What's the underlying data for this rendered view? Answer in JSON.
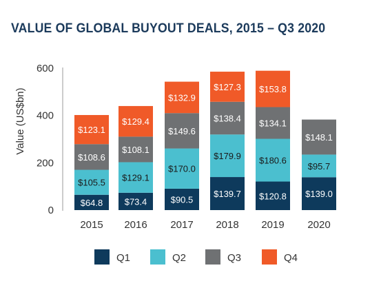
{
  "chart_data": {
    "type": "bar",
    "stacked": true,
    "title": "VALUE OF GLOBAL BUYOUT DEALS, 2015 – Q3 2020",
    "xlabel": "",
    "ylabel": "Value (US$bn)",
    "ylim": [
      0,
      600
    ],
    "yticks": [
      0,
      200,
      400,
      600
    ],
    "grid": false,
    "legend_position": "bottom",
    "categories": [
      "2015",
      "2016",
      "2017",
      "2018",
      "2019",
      "2020"
    ],
    "series": [
      {
        "name": "Q1",
        "color": "#0e3a5c",
        "label_color": "#ffffff",
        "values": [
          64.8,
          73.4,
          90.5,
          139.7,
          120.8,
          139.0
        ],
        "labels": [
          "$64.8",
          "$73.4",
          "$90.5",
          "$139.7",
          "$120.8",
          "$139.0"
        ]
      },
      {
        "name": "Q2",
        "color": "#4bbfcf",
        "label_color": "#1a1a1a",
        "values": [
          105.5,
          129.1,
          170.0,
          179.9,
          180.6,
          95.7
        ],
        "labels": [
          "$105.5",
          "$129.1",
          "$170.0",
          "$179.9",
          "$180.6",
          "$95.7"
        ]
      },
      {
        "name": "Q3",
        "color": "#6f7173",
        "label_color": "#ffffff",
        "values": [
          108.6,
          108.1,
          149.6,
          138.4,
          134.1,
          148.1
        ],
        "labels": [
          "$108.6",
          "$108.1",
          "$149.6",
          "$138.4",
          "$134.1",
          "$148.1"
        ]
      },
      {
        "name": "Q4",
        "color": "#f05a28",
        "label_color": "#ffffff",
        "values": [
          123.1,
          129.4,
          132.9,
          127.3,
          153.8,
          null
        ],
        "labels": [
          "$123.1",
          "$129.4",
          "$132.9",
          "$127.3",
          "$153.8",
          null
        ]
      }
    ]
  }
}
